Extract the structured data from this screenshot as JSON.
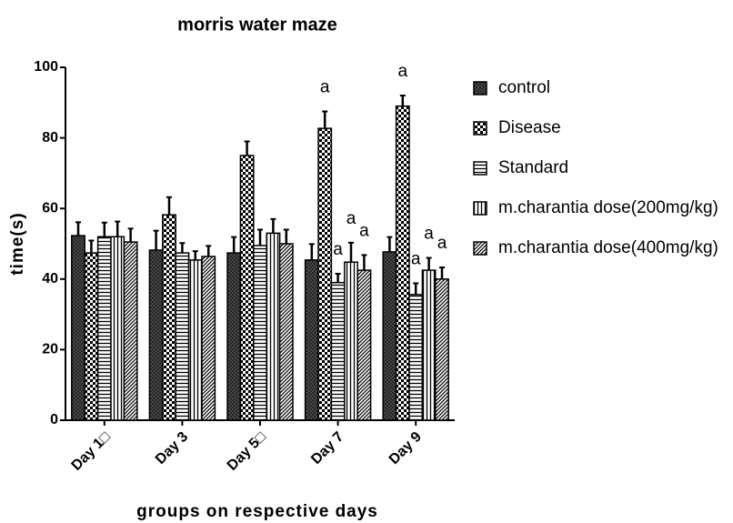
{
  "chart_data": {
    "type": "bar",
    "title": "morris water maze",
    "xlabel": "groups on respective days",
    "ylabel": "time(s)",
    "categories": [
      "Day 1□",
      "Day 3",
      "Day 5□",
      "Day 7",
      "Day 9"
    ],
    "series": [
      {
        "name": "control",
        "color": "#000000",
        "pattern": "crosshatch",
        "values": [
          52.3,
          48.2,
          47.4,
          45.4,
          47.7
        ],
        "errors": [
          3.8,
          5.5,
          4.5,
          4.5,
          4.2
        ],
        "annotations": [
          null,
          null,
          null,
          null,
          null
        ]
      },
      {
        "name": "Disease",
        "color": "#000000",
        "pattern": "checker",
        "values": [
          47.4,
          58.2,
          75,
          82.7,
          89
        ],
        "errors": [
          3.5,
          5,
          4,
          4.8,
          3
        ],
        "annotations": [
          null,
          null,
          null,
          "a",
          "a"
        ]
      },
      {
        "name": "Standard",
        "color": "#000000",
        "pattern": "hlines",
        "values": [
          52,
          47.4,
          49.5,
          39,
          35.6
        ],
        "errors": [
          4,
          2.8,
          4.5,
          2.5,
          3.2
        ],
        "annotations": [
          null,
          null,
          null,
          "a",
          "a"
        ]
      },
      {
        "name": "m.charantia dose(200mg/kg)",
        "color": "#000000",
        "pattern": "vlines",
        "values": [
          52,
          45.4,
          53,
          44.8,
          42.5
        ],
        "errors": [
          4.3,
          2.5,
          4,
          5.5,
          3.5
        ],
        "annotations": [
          null,
          null,
          null,
          "a",
          "a"
        ]
      },
      {
        "name": "m.charantia dose(400mg/kg)",
        "color": "#000000",
        "pattern": "diag",
        "values": [
          50.5,
          46.4,
          50,
          42.5,
          40
        ],
        "errors": [
          3.8,
          3,
          4,
          4.3,
          3.3
        ],
        "annotations": [
          null,
          null,
          null,
          "a",
          "a"
        ]
      }
    ],
    "ylim": [
      0,
      100
    ],
    "yticks": [
      0,
      20,
      40,
      60,
      80,
      100
    ],
    "grid": false,
    "legend": "right"
  }
}
